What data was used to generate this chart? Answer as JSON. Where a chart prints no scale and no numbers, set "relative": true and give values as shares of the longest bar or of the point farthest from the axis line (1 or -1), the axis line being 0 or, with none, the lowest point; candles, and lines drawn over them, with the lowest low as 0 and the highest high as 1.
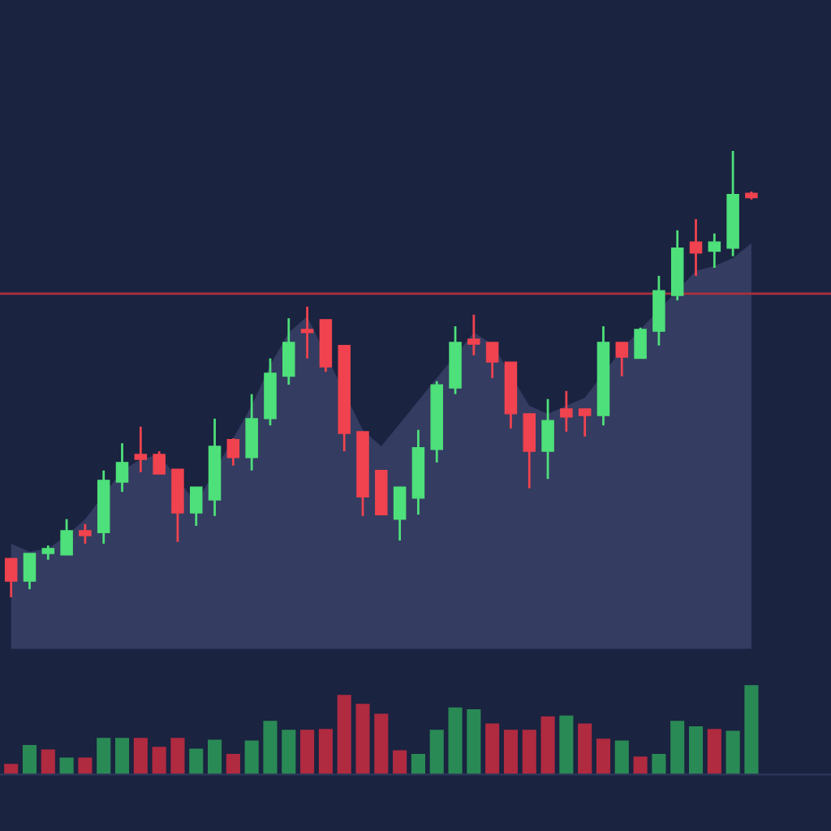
{
  "chart_data": [
    {
      "type": "candlestick",
      "relative": true,
      "categories": [
        null,
        null,
        null,
        null,
        null,
        null,
        null,
        null,
        null,
        null,
        null,
        null,
        null,
        null,
        null,
        null,
        null,
        null,
        null,
        null,
        null,
        null,
        null,
        null,
        null,
        null,
        null,
        null,
        null,
        null,
        null,
        null,
        null,
        null,
        null,
        null,
        null,
        null,
        null,
        null,
        null
      ],
      "ohlc": [
        [
          0.087,
          0.087,
          0,
          0.036
        ],
        [
          0.036,
          0.098,
          0.018,
          0.098
        ],
        [
          0.098,
          0.116,
          0.084,
          0.109
        ],
        [
          0.095,
          0.175,
          0.095,
          0.149
        ],
        [
          0.149,
          0.164,
          0.12,
          0.138
        ],
        [
          0.145,
          0.284,
          0.12,
          0.262
        ],
        [
          0.258,
          0.345,
          0.236,
          0.302
        ],
        [
          0.32,
          0.382,
          0.28,
          0.309
        ],
        [
          0.32,
          0.327,
          0.276,
          0.276
        ],
        [
          0.287,
          0.287,
          0.124,
          0.189
        ],
        [
          0.189,
          0.247,
          0.16,
          0.247
        ],
        [
          0.218,
          0.4,
          0.182,
          0.338
        ],
        [
          0.353,
          0.356,
          0.295,
          0.313
        ],
        [
          0.313,
          0.455,
          0.284,
          0.4
        ],
        [
          0.4,
          0.535,
          0.385,
          0.502
        ],
        [
          0.495,
          0.625,
          0.476,
          0.571
        ],
        [
          0.6,
          0.651,
          0.535,
          0.593
        ],
        [
          0.622,
          0.622,
          0.505,
          0.516
        ],
        [
          0.564,
          0.564,
          0.327,
          0.367
        ],
        [
          0.371,
          0.371,
          0.182,
          0.225
        ],
        [
          0.284,
          0.284,
          0.185,
          0.185
        ],
        [
          0.175,
          0.247,
          0.127,
          0.247
        ],
        [
          0.222,
          0.375,
          0.185,
          0.335
        ],
        [
          0.331,
          0.484,
          0.302,
          0.476
        ],
        [
          0.469,
          0.607,
          0.455,
          0.571
        ],
        [
          0.578,
          0.633,
          0.542,
          0.567
        ],
        [
          0.571,
          0.571,
          0.491,
          0.527
        ],
        [
          0.527,
          0.527,
          0.378,
          0.411
        ],
        [
          0.411,
          0.411,
          0.244,
          0.327
        ],
        [
          0.327,
          0.444,
          0.265,
          0.396
        ],
        [
          0.422,
          0.462,
          0.371,
          0.404
        ],
        [
          0.422,
          0.422,
          0.36,
          0.407
        ],
        [
          0.407,
          0.607,
          0.385,
          0.571
        ],
        [
          0.571,
          0.571,
          0.495,
          0.538
        ],
        [
          0.535,
          0.604,
          0.535,
          0.6
        ],
        [
          0.596,
          0.72,
          0.564,
          0.687
        ],
        [
          0.676,
          0.822,
          0.665,
          0.782
        ],
        [
          0.796,
          0.847,
          0.72,
          0.771
        ],
        [
          0.775,
          0.815,
          0.738,
          0.796
        ],
        [
          0.782,
          1,
          0.764,
          0.902
        ],
        [
          0.905,
          0.909,
          0.891,
          0.895
        ]
      ],
      "colors": [
        "#f0434f",
        "#4ee07a",
        "#4ee07a",
        "#4ee07a",
        "#f0434f",
        "#4ee07a",
        "#4ee07a",
        "#f0434f",
        "#f0434f",
        "#f0434f",
        "#4ee07a",
        "#4ee07a",
        "#f0434f",
        "#4ee07a",
        "#4ee07a",
        "#4ee07a",
        "#f0434f",
        "#f0434f",
        "#f0434f",
        "#f0434f",
        "#f0434f",
        "#4ee07a",
        "#4ee07a",
        "#4ee07a",
        "#4ee07a",
        "#f0434f",
        "#f0434f",
        "#f0434f",
        "#f0434f",
        "#4ee07a",
        "#f0434f",
        "#f0434f",
        "#4ee07a",
        "#f0434f",
        "#4ee07a",
        "#4ee07a",
        "#4ee07a",
        "#f0434f",
        "#4ee07a",
        "#4ee07a",
        "#f0434f"
      ],
      "series": [
        {
          "type": "area",
          "color": "#343c61",
          "values": [
            0.12,
            0.102,
            0.109,
            0.138,
            0.175,
            null,
            0.284,
            0.309,
            0.32,
            null,
            0.211,
            null,
            0.356,
            0.429,
            0.52,
            0.593,
            0.629,
            null,
            null,
            0.375,
            0.338,
            null,
            null,
            null,
            null,
            0.593,
            0.567,
            null,
            0.429,
            0.411,
            0.429,
            0.447,
            null,
            0.556,
            null,
            null,
            null,
            0.731,
            0.742,
            0.76,
            0.793
          ]
        }
      ],
      "ref_lines": [
        {
          "axis": "y",
          "value": 0.68,
          "color": "#a8323f"
        }
      ]
    },
    {
      "type": "bar",
      "relative": true,
      "categories": [
        null,
        null,
        null,
        null,
        null,
        null,
        null,
        null,
        null,
        null,
        null,
        null,
        null,
        null,
        null,
        null,
        null,
        null,
        null,
        null,
        null,
        null,
        null,
        null,
        null,
        null,
        null,
        null,
        null,
        null,
        null,
        null,
        null,
        null,
        null,
        null,
        null,
        null,
        null,
        null,
        null
      ],
      "values": [
        0.12,
        0.33,
        0.28,
        0.19,
        0.19,
        0.41,
        0.41,
        0.41,
        0.31,
        0.41,
        0.29,
        0.39,
        0.23,
        0.38,
        0.6,
        0.5,
        0.5,
        0.51,
        0.89,
        0.79,
        0.68,
        0.27,
        0.23,
        0.5,
        0.75,
        0.73,
        0.57,
        0.5,
        0.5,
        0.65,
        0.66,
        0.57,
        0.4,
        0.38,
        0.2,
        0.23,
        0.6,
        0.54,
        0.51,
        0.49,
        1
      ],
      "colors": [
        "#b02a40",
        "#2a8a55",
        "#b02a40",
        "#2a8a55",
        "#b02a40",
        "#2a8a55",
        "#2a8a55",
        "#b02a40",
        "#b02a40",
        "#b02a40",
        "#2a8a55",
        "#2a8a55",
        "#b02a40",
        "#2a8a55",
        "#2a8a55",
        "#2a8a55",
        "#b02a40",
        "#b02a40",
        "#b02a40",
        "#b02a40",
        "#b02a40",
        "#b02a40",
        "#2a8a55",
        "#2a8a55",
        "#2a8a55",
        "#2a8a55",
        "#b02a40",
        "#b02a40",
        "#b02a40",
        "#b02a40",
        "#2a8a55",
        "#b02a40",
        "#b02a40",
        "#2a8a55",
        "#b02a40",
        "#2a8a55",
        "#2a8a55",
        "#2a8a55",
        "#b02a40",
        "#2a8a55",
        "#2a8a55"
      ]
    }
  ]
}
